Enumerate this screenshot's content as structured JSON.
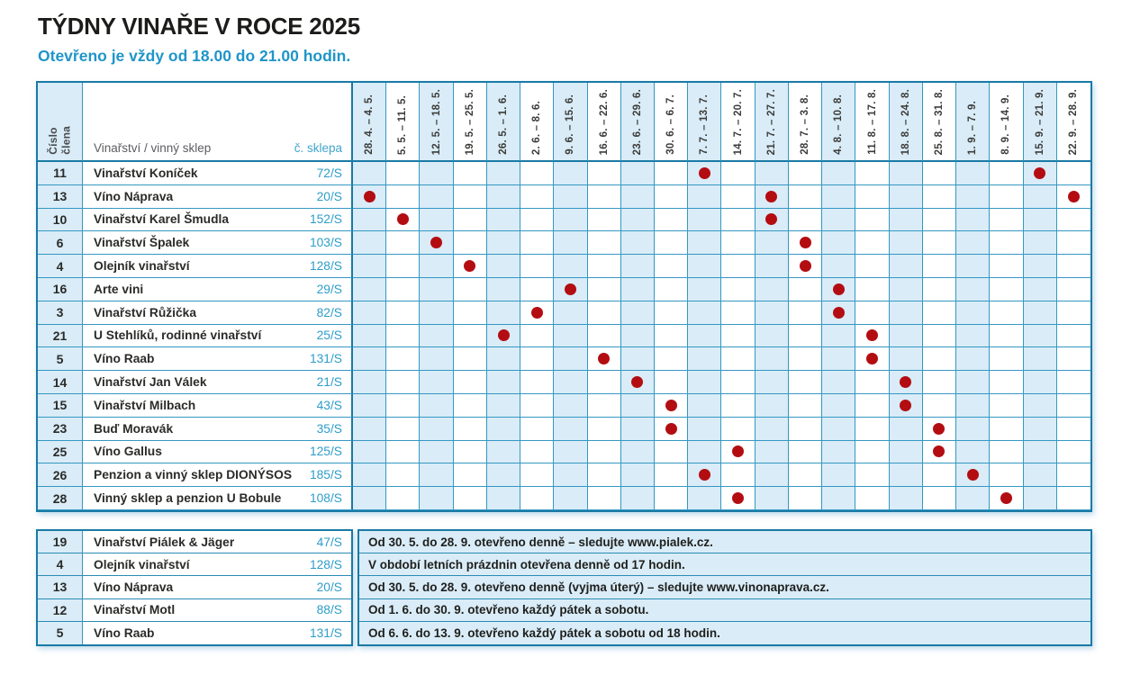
{
  "page": {
    "title": "TÝDNY VINAŘE V ROCE 2025",
    "subtitle": "Otevřeno je vždy od 18.00 do 21.00 hodin."
  },
  "colors": {
    "accent_blue": "#1f95c8",
    "grid_line": "#3598c2",
    "outer_border": "#1a7aa5",
    "cell_alt_blue": "#d9ecf7",
    "dot_red": "#b30d12",
    "text_dark": "#2b2b29",
    "cellar_blue": "#2e9dc9"
  },
  "main_table": {
    "headers": {
      "member_number": "Číslo\nčlena",
      "winery": "Vinařství / vinný sklep",
      "cellar_number": "č. sklepa"
    },
    "weeks": [
      "28. 4. – 4. 5.",
      "5. 5. – 11. 5.",
      "12. 5. – 18. 5.",
      "19. 5. – 25. 5.",
      "26. 5. – 1. 6.",
      "2. 6. – 8. 6.",
      "9. 6. – 15. 6.",
      "16. 6. – 22. 6.",
      "23. 6. – 29. 6.",
      "30. 6. – 6. 7.",
      "7. 7. – 13. 7.",
      "14. 7. – 20. 7.",
      "21. 7. – 27. 7.",
      "28. 7. – 3. 8.",
      "4. 8. – 10. 8.",
      "11. 8. – 17. 8.",
      "18. 8. – 24. 8.",
      "25. 8. – 31. 8.",
      "1. 9. – 7. 9.",
      "8. 9. – 14. 9.",
      "15. 9. – 21. 9.",
      "22. 9. – 28. 9."
    ],
    "rows": [
      {
        "member": "11",
        "name": "Vinařství Koníček",
        "cellar": "72/S",
        "open_weeks": [
          11,
          21
        ]
      },
      {
        "member": "13",
        "name": "Víno Náprava",
        "cellar": "20/S",
        "open_weeks": [
          1,
          13,
          22
        ]
      },
      {
        "member": "10",
        "name": "Vinařství Karel Šmudla",
        "cellar": "152/S",
        "open_weeks": [
          2,
          13
        ]
      },
      {
        "member": "6",
        "name": "Vinařství Špalek",
        "cellar": "103/S",
        "open_weeks": [
          3,
          14
        ]
      },
      {
        "member": "4",
        "name": "Olejník vinařství",
        "cellar": "128/S",
        "open_weeks": [
          4,
          14
        ]
      },
      {
        "member": "16",
        "name": "Arte vini",
        "cellar": "29/S",
        "open_weeks": [
          7,
          15
        ]
      },
      {
        "member": "3",
        "name": "Vinařství Růžička",
        "cellar": "82/S",
        "open_weeks": [
          6,
          15
        ]
      },
      {
        "member": "21",
        "name": "U Stehlíků, rodinné vinařství",
        "cellar": "25/S",
        "open_weeks": [
          5,
          16
        ]
      },
      {
        "member": "5",
        "name": "Víno Raab",
        "cellar": "131/S",
        "open_weeks": [
          8,
          16
        ]
      },
      {
        "member": "14",
        "name": "Vinařství Jan Válek",
        "cellar": "21/S",
        "open_weeks": [
          9,
          17
        ]
      },
      {
        "member": "15",
        "name": "Vinařství Milbach",
        "cellar": "43/S",
        "open_weeks": [
          10,
          17
        ]
      },
      {
        "member": "23",
        "name": "Buď Moravák",
        "cellar": "35/S",
        "open_weeks": [
          10,
          18
        ]
      },
      {
        "member": "25",
        "name": "Víno Gallus",
        "cellar": "125/S",
        "open_weeks": [
          12,
          18
        ]
      },
      {
        "member": "26",
        "name": "Penzion a vinný sklep DIONÝSOS",
        "cellar": "185/S",
        "open_weeks": [
          11,
          19
        ]
      },
      {
        "member": "28",
        "name": "Vinný sklep a penzion U Bobule",
        "cellar": "108/S",
        "open_weeks": [
          12,
          20
        ]
      }
    ]
  },
  "notes_table": {
    "rows": [
      {
        "member": "19",
        "name": "Vinařství Piálek & Jäger",
        "cellar": "47/S",
        "note": "Od 30. 5. do 28. 9. otevřeno denně – sledujte www.pialek.cz."
      },
      {
        "member": "4",
        "name": "Olejník vinařství",
        "cellar": "128/S",
        "note": "V období letních prázdnin otevřena denně od 17 hodin."
      },
      {
        "member": "13",
        "name": "Víno Náprava",
        "cellar": "20/S",
        "note": "Od 30. 5. do 28. 9. otevřeno denně (vyjma úterý) – sledujte www.vinonaprava.cz."
      },
      {
        "member": "12",
        "name": "Vinařství Motl",
        "cellar": "88/S",
        "note": "Od 1. 6. do 30. 9. otevřeno každý pátek a sobotu."
      },
      {
        "member": "5",
        "name": "Víno Raab",
        "cellar": "131/S",
        "note": "Od 6. 6. do 13. 9. otevřeno každý pátek a sobotu od 18 hodin."
      }
    ]
  }
}
